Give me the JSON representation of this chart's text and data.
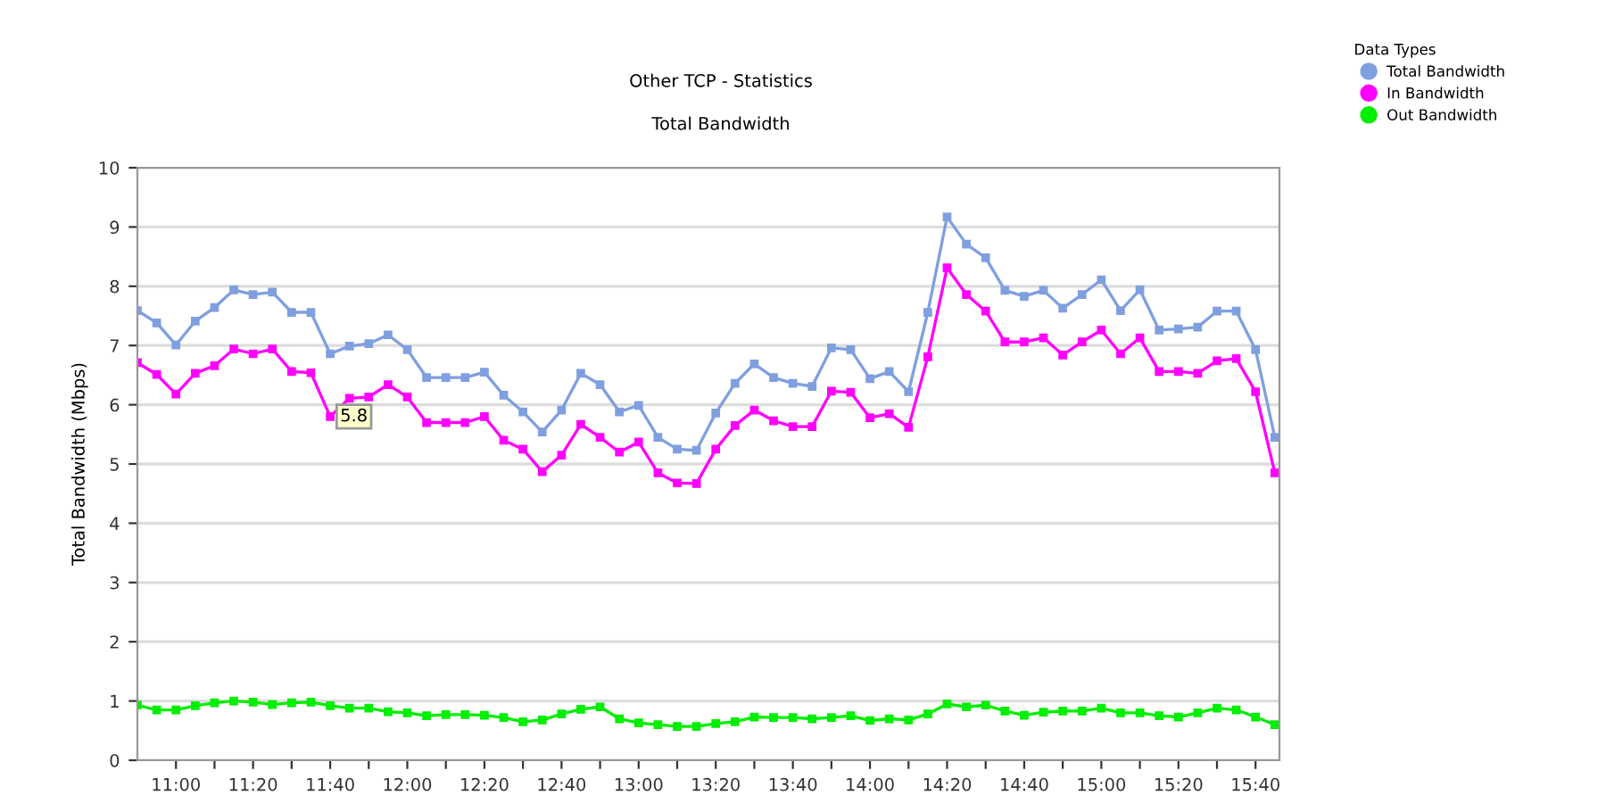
{
  "chart_data": {
    "type": "line",
    "title": "Other TCP - Statistics",
    "subtitle": "Total Bandwidth",
    "ylabel": "Total Bandwidth (Mbps)",
    "legend_title": "Data Types",
    "legend": "top right",
    "grid": "y",
    "marker": "square",
    "line_style": "solid",
    "x": [
      10.8333,
      10.9167,
      11.0,
      11.0833,
      11.1667,
      11.25,
      11.3333,
      11.4167,
      11.5,
      11.5833,
      11.6667,
      11.75,
      11.8333,
      11.9167,
      12.0,
      12.0833,
      12.1667,
      12.25,
      12.3333,
      12.4167,
      12.5,
      12.5833,
      12.6667,
      12.75,
      12.8333,
      12.9167,
      13.0,
      13.0833,
      13.1667,
      13.25,
      13.3333,
      13.4167,
      13.5,
      13.5833,
      13.6667,
      13.75,
      13.8333,
      13.9167,
      14.0,
      14.0833,
      14.1667,
      14.25,
      14.3333,
      14.4167,
      14.5,
      14.5833,
      14.6667,
      14.75,
      14.8333,
      14.9167,
      15.0,
      15.0833,
      15.1667,
      15.25,
      15.3333,
      15.4167,
      15.5,
      15.5833,
      15.6667,
      15.75
    ],
    "xlim": [
      10.8333,
      15.77
    ],
    "xticks": [
      {
        "value": 11.0,
        "label": "11:00"
      },
      {
        "value": 11.1667,
        "label": null
      },
      {
        "value": 11.3333,
        "label": "11:20"
      },
      {
        "value": 11.5,
        "label": null
      },
      {
        "value": 11.6667,
        "label": "11:40"
      },
      {
        "value": 11.8333,
        "label": null
      },
      {
        "value": 12.0,
        "label": "12:00"
      },
      {
        "value": 12.1667,
        "label": null
      },
      {
        "value": 12.3333,
        "label": "12:20"
      },
      {
        "value": 12.5,
        "label": null
      },
      {
        "value": 12.6667,
        "label": "12:40"
      },
      {
        "value": 12.8333,
        "label": null
      },
      {
        "value": 13.0,
        "label": "13:00"
      },
      {
        "value": 13.1667,
        "label": null
      },
      {
        "value": 13.3333,
        "label": "13:20"
      },
      {
        "value": 13.5,
        "label": null
      },
      {
        "value": 13.6667,
        "label": "13:40"
      },
      {
        "value": 13.8333,
        "label": null
      },
      {
        "value": 14.0,
        "label": "14:00"
      },
      {
        "value": 14.1667,
        "label": null
      },
      {
        "value": 14.3333,
        "label": "14:20"
      },
      {
        "value": 14.5,
        "label": null
      },
      {
        "value": 14.6667,
        "label": "14:40"
      },
      {
        "value": 14.8333,
        "label": null
      },
      {
        "value": 15.0,
        "label": "15:00"
      },
      {
        "value": 15.1667,
        "label": null
      },
      {
        "value": 15.3333,
        "label": "15:20"
      },
      {
        "value": 15.5,
        "label": null
      },
      {
        "value": 15.6667,
        "label": "15:40"
      }
    ],
    "ylim": [
      0,
      10
    ],
    "yticks": [
      0,
      1,
      2,
      3,
      4,
      5,
      6,
      7,
      8,
      9,
      10
    ],
    "annotations": [
      {
        "text": "5.8",
        "x": 11.6667,
        "y": 5.8
      }
    ],
    "series": [
      {
        "name": "Total Bandwidth",
        "color": "#7f9fdf",
        "values": [
          7.59,
          7.38,
          7.01,
          7.41,
          7.64,
          7.94,
          7.86,
          7.9,
          7.56,
          7.56,
          6.86,
          6.99,
          7.03,
          7.18,
          6.93,
          6.46,
          6.46,
          6.46,
          6.55,
          6.16,
          5.88,
          5.54,
          5.91,
          6.53,
          6.34,
          5.88,
          5.99,
          5.45,
          5.25,
          5.23,
          5.86,
          6.36,
          6.69,
          6.46,
          6.36,
          6.31,
          6.96,
          6.93,
          6.44,
          6.56,
          6.22,
          7.56,
          9.17,
          8.71,
          8.48,
          7.93,
          7.83,
          7.93,
          7.63,
          7.86,
          8.11,
          7.59,
          7.94,
          7.26,
          7.28,
          7.31,
          7.58,
          7.58,
          6.93,
          5.45
        ]
      },
      {
        "name": "In Bandwidth",
        "color": "#ff00ff",
        "values": [
          6.71,
          6.51,
          6.18,
          6.53,
          6.66,
          6.94,
          6.86,
          6.94,
          6.56,
          6.54,
          5.8,
          6.11,
          6.13,
          6.34,
          6.13,
          5.7,
          5.7,
          5.7,
          5.8,
          5.4,
          5.25,
          4.87,
          5.15,
          5.67,
          5.45,
          5.2,
          5.37,
          4.85,
          4.68,
          4.67,
          5.25,
          5.65,
          5.91,
          5.73,
          5.63,
          5.63,
          6.23,
          6.21,
          5.78,
          5.85,
          5.62,
          6.81,
          8.31,
          7.86,
          7.58,
          7.06,
          7.06,
          7.13,
          6.84,
          7.06,
          7.26,
          6.86,
          7.13,
          6.56,
          6.56,
          6.53,
          6.74,
          6.78,
          6.22,
          4.85
        ]
      },
      {
        "name": "Out Bandwidth",
        "color": "#00ee00",
        "values": [
          0.93,
          0.85,
          0.85,
          0.92,
          0.97,
          1.0,
          0.98,
          0.94,
          0.97,
          0.98,
          0.92,
          0.88,
          0.88,
          0.82,
          0.8,
          0.75,
          0.77,
          0.77,
          0.76,
          0.72,
          0.65,
          0.68,
          0.78,
          0.86,
          0.9,
          0.7,
          0.63,
          0.6,
          0.57,
          0.57,
          0.62,
          0.65,
          0.73,
          0.72,
          0.72,
          0.7,
          0.72,
          0.75,
          0.67,
          0.7,
          0.68,
          0.78,
          0.95,
          0.9,
          0.93,
          0.83,
          0.76,
          0.81,
          0.83,
          0.83,
          0.88,
          0.8,
          0.8,
          0.75,
          0.73,
          0.8,
          0.88,
          0.85,
          0.73,
          0.6
        ]
      }
    ]
  }
}
